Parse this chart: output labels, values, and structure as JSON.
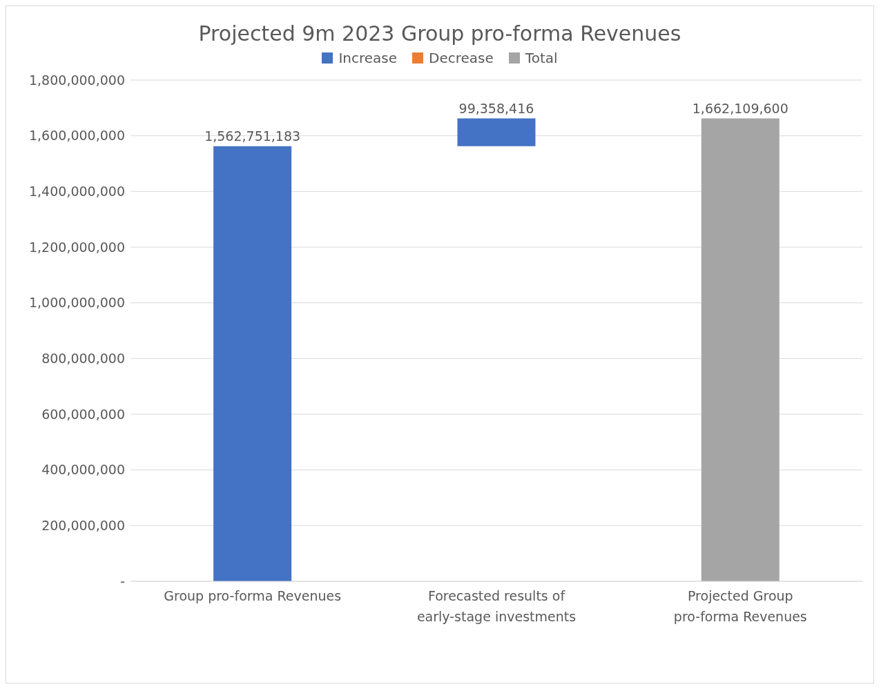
{
  "chart_data": {
    "type": "bar",
    "title": "Projected 9m 2023 Group pro-forma Revenues",
    "categories": [
      "Group pro-forma Revenues",
      "Forecasted results of early-stage investments",
      "Projected Group pro-forma Revenues"
    ],
    "series": [
      {
        "name": "Increase",
        "color": "#4472c4",
        "values": [
          1562751183,
          99358416,
          null
        ],
        "base": [
          0,
          1562751183,
          null
        ],
        "value_labels": [
          "1,562,751,183",
          "99,358,416",
          null
        ]
      },
      {
        "name": "Decrease",
        "color": "#ed7d31",
        "values": [
          null,
          null,
          null
        ]
      },
      {
        "name": "Total",
        "color": "#a5a5a5",
        "values": [
          null,
          null,
          1662109600
        ],
        "base": [
          null,
          null,
          0
        ],
        "value_labels": [
          null,
          null,
          "1,662,109,600"
        ]
      }
    ],
    "ylim": [
      0,
      1800000000
    ],
    "yticks": [
      {
        "value": 0,
        "label": "-"
      },
      {
        "value": 200000000,
        "label": "200,000,000"
      },
      {
        "value": 400000000,
        "label": "400,000,000"
      },
      {
        "value": 600000000,
        "label": "600,000,000"
      },
      {
        "value": 800000000,
        "label": "800,000,000"
      },
      {
        "value": 1000000000,
        "label": "1,000,000,000"
      },
      {
        "value": 1200000000,
        "label": "1,200,000,000"
      },
      {
        "value": 1400000000,
        "label": "1,400,000,000"
      },
      {
        "value": 1600000000,
        "label": "1,600,000,000"
      },
      {
        "value": 1800000000,
        "label": "1,800,000,000"
      }
    ],
    "grid": "y",
    "legend": "top"
  }
}
